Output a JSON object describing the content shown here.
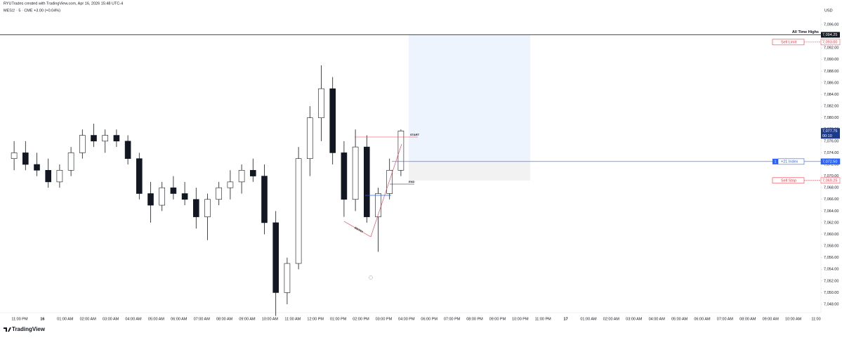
{
  "header": {
    "author_line": "RYUTrades created with TradingView.com, Apr 16, 2026 15:48 UTC-4",
    "symbol_line": "MES1! · 5 · CME  +3.00 (+0.04%)",
    "currency": "USD"
  },
  "price_axis": {
    "ticks": [
      {
        "value": 7096,
        "label": "7,096.00"
      },
      {
        "value": 7094,
        "label": "7,094.00"
      },
      {
        "value": 7092,
        "label": "7,092.00"
      },
      {
        "value": 7090,
        "label": "7,090.00"
      },
      {
        "value": 7088,
        "label": "7,088.00"
      },
      {
        "value": 7086,
        "label": "7,086.00"
      },
      {
        "value": 7084,
        "label": "7,084.00"
      },
      {
        "value": 7082,
        "label": "7,082.00"
      },
      {
        "value": 7080,
        "label": "7,080.00"
      },
      {
        "value": 7078,
        "label": "7,078.00"
      },
      {
        "value": 7076,
        "label": "7,076.00"
      },
      {
        "value": 7074,
        "label": "7,074.00"
      },
      {
        "value": 7072,
        "label": "7,072.00"
      },
      {
        "value": 7070,
        "label": "7,070.00"
      },
      {
        "value": 7068,
        "label": "7,068.00"
      },
      {
        "value": 7066,
        "label": "7,066.00"
      },
      {
        "value": 7064,
        "label": "7,064.00"
      },
      {
        "value": 7062,
        "label": "7,062.00"
      },
      {
        "value": 7060,
        "label": "7,060.00"
      },
      {
        "value": 7058,
        "label": "7,058.00"
      },
      {
        "value": 7056,
        "label": "7,056.00"
      },
      {
        "value": 7054,
        "label": "7,054.00"
      },
      {
        "value": 7052,
        "label": "7,052.00"
      },
      {
        "value": 7050,
        "label": "7,050.00"
      },
      {
        "value": 7048,
        "label": "7,048.00"
      }
    ]
  },
  "time_axis": {
    "labels": [
      "11:00 PM",
      "16",
      "01:00 AM",
      "02:00 AM",
      "03:00 AM",
      "04:00 AM",
      "05:00 AM",
      "06:00 AM",
      "07:00 AM",
      "08:00 AM",
      "09:00 AM",
      "10:00 AM",
      "11:00 AM",
      "12:00 PM",
      "01:00 PM",
      "02:00 PM",
      "03:00 PM",
      "04:00 PM",
      "06:00 PM",
      "07:00 PM",
      "08:00 PM",
      "09:00 PM",
      "10:00 PM",
      "11:00 PM",
      "17",
      "01:00 AM",
      "02:00 AM",
      "03:00 AM",
      "04:00 AM",
      "05:00 AM",
      "06:00 AM",
      "07:00 AM",
      "08:00 AM",
      "09:00 AM",
      "10:00 AM",
      "11:00"
    ]
  },
  "candles": [
    {
      "open": 7073,
      "high": 7076,
      "low": 7071,
      "close": 7074
    },
    {
      "open": 7074,
      "high": 7076,
      "low": 7071,
      "close": 7072
    },
    {
      "open": 7072,
      "high": 7074,
      "low": 7070,
      "close": 7071
    },
    {
      "open": 7071,
      "high": 7073,
      "low": 7068,
      "close": 7069
    },
    {
      "open": 7069,
      "high": 7072,
      "low": 7068,
      "close": 7071
    },
    {
      "open": 7071,
      "high": 7075,
      "low": 7070,
      "close": 7074
    },
    {
      "open": 7074,
      "high": 7078,
      "low": 7073,
      "close": 7077
    },
    {
      "open": 7077,
      "high": 7079,
      "low": 7075,
      "close": 7076
    },
    {
      "open": 7076,
      "high": 7078,
      "low": 7074,
      "close": 7077
    },
    {
      "open": 7077,
      "high": 7078,
      "low": 7075,
      "close": 7076
    },
    {
      "open": 7076,
      "high": 7077,
      "low": 7072,
      "close": 7073
    },
    {
      "open": 7073,
      "high": 7074,
      "low": 7066,
      "close": 7067
    },
    {
      "open": 7067,
      "high": 7069,
      "low": 7062,
      "close": 7065
    },
    {
      "open": 7065,
      "high": 7069,
      "low": 7064,
      "close": 7068
    },
    {
      "open": 7068,
      "high": 7070,
      "low": 7066,
      "close": 7067
    },
    {
      "open": 7067,
      "high": 7069,
      "low": 7065,
      "close": 7066
    },
    {
      "open": 7066,
      "high": 7068,
      "low": 7061,
      "close": 7063
    },
    {
      "open": 7063,
      "high": 7067,
      "low": 7059,
      "close": 7066
    },
    {
      "open": 7066,
      "high": 7069,
      "low": 7065,
      "close": 7068
    },
    {
      "open": 7068,
      "high": 7071,
      "low": 7066,
      "close": 7069
    },
    {
      "open": 7069,
      "high": 7072,
      "low": 7067,
      "close": 7071
    },
    {
      "open": 7071,
      "high": 7073,
      "low": 7069,
      "close": 7070
    },
    {
      "open": 7070,
      "high": 7072,
      "low": 7060,
      "close": 7062
    },
    {
      "open": 7062,
      "high": 7064,
      "low": 7046,
      "close": 7050
    },
    {
      "open": 7050,
      "high": 7056,
      "low": 7048,
      "close": 7055
    },
    {
      "open": 7055,
      "high": 7075,
      "low": 7054,
      "close": 7073
    },
    {
      "open": 7073,
      "high": 7082,
      "low": 7070,
      "close": 7080
    },
    {
      "open": 7080,
      "high": 7089,
      "low": 7076,
      "close": 7085
    },
    {
      "open": 7085,
      "high": 7087,
      "low": 7072,
      "close": 7074
    },
    {
      "open": 7074,
      "high": 7076,
      "low": 7063,
      "close": 7066
    },
    {
      "open": 7066,
      "high": 7078,
      "low": 7064,
      "close": 7075
    },
    {
      "open": 7075,
      "high": 7077,
      "low": 7062,
      "close": 7063
    },
    {
      "open": 7063,
      "high": 7068,
      "low": 7057,
      "close": 7067
    },
    {
      "open": 7067,
      "high": 7073,
      "low": 7066,
      "close": 7071
    },
    {
      "open": 7071,
      "high": 7078,
      "low": 7070,
      "close": 7077.75
    }
  ],
  "level": {
    "name": "All Time Highs",
    "price": {
      "value": 7094.25,
      "label": "7,094.25"
    }
  },
  "orders": [
    {
      "text": "Sell Limit",
      "price": {
        "value": 7093,
        "label": "7,093.00"
      }
    },
    {
      "id": "1",
      "text": "+21 Index",
      "price": {
        "value": 7072.5,
        "label": "7,072.50"
      }
    },
    {
      "text": "Sell Stop",
      "price": {
        "value": 7069.25,
        "label": "7,069.25"
      }
    }
  ],
  "last_price": {
    "value": 7077.75,
    "label": "7,077.75",
    "countdown": "00:10"
  },
  "drawings": {
    "start": "START",
    "end": "END",
    "entry": "ENTRY"
  },
  "logo": "TradingView"
}
